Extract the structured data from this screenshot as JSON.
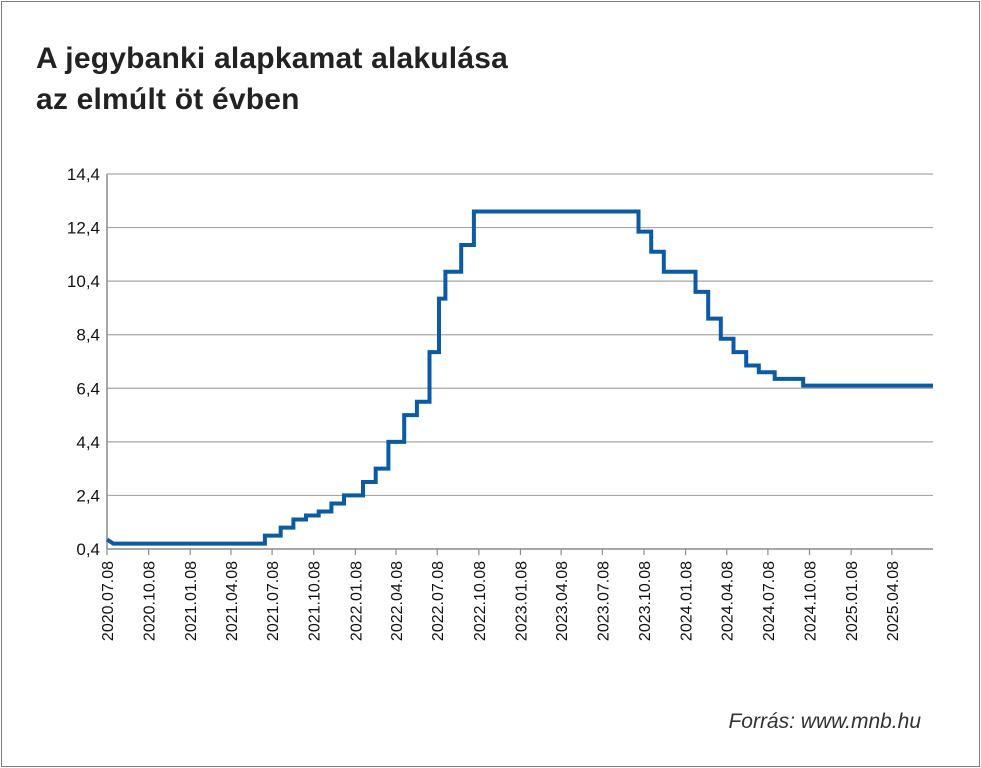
{
  "title_lines": [
    "A jegybanki alapkamat alakulása",
    "az elmúlt öt évben"
  ],
  "source": "Forrás: www.mnb.hu",
  "chart_data": {
    "type": "line",
    "title": "A jegybanki alapkamat alakulása az elmúlt öt évben",
    "xlabel": "",
    "ylabel": "",
    "ylim": [
      0.4,
      14.4
    ],
    "yticks": [
      "0,4",
      "2,4",
      "4,4",
      "6,4",
      "8,4",
      "10,4",
      "12,4",
      "14,4"
    ],
    "xticks": [
      "2020.07.08",
      "2020.10.08",
      "2021.01.08",
      "2021.04.08",
      "2021.07.08",
      "2021.10.08",
      "2022.01.08",
      "2022.04.08",
      "2022.07.08",
      "2022.10.08",
      "2023.01.08",
      "2023.04.08",
      "2023.07.08",
      "2023.10.08",
      "2024.01.08",
      "2024.04.08",
      "2024.07.08",
      "2024.10.08",
      "2025.01.08",
      "2025.04.08"
    ],
    "grid": true,
    "line_color": "#0b5aa6",
    "series": [
      {
        "points": [
          [
            "2020.07.08",
            0.75
          ],
          [
            "2020.07.22",
            0.6
          ],
          [
            "2021.06.22",
            0.6
          ],
          [
            "2021.06.22",
            0.9
          ],
          [
            "2021.07.27",
            0.9
          ],
          [
            "2021.07.27",
            1.2
          ],
          [
            "2021.08.24",
            1.2
          ],
          [
            "2021.08.24",
            1.5
          ],
          [
            "2021.09.21",
            1.5
          ],
          [
            "2021.09.21",
            1.65
          ],
          [
            "2021.10.19",
            1.65
          ],
          [
            "2021.10.19",
            1.8
          ],
          [
            "2021.11.16",
            1.8
          ],
          [
            "2021.11.16",
            2.1
          ],
          [
            "2021.12.14",
            2.1
          ],
          [
            "2021.12.14",
            2.4
          ],
          [
            "2022.01.25",
            2.4
          ],
          [
            "2022.01.25",
            2.9
          ],
          [
            "2022.02.22",
            2.9
          ],
          [
            "2022.02.22",
            3.4
          ],
          [
            "2022.03.22",
            3.4
          ],
          [
            "2022.03.22",
            4.4
          ],
          [
            "2022.04.26",
            4.4
          ],
          [
            "2022.04.26",
            5.4
          ],
          [
            "2022.05.24",
            5.4
          ],
          [
            "2022.05.24",
            5.9
          ],
          [
            "2022.06.21",
            5.9
          ],
          [
            "2022.06.21",
            7.75
          ],
          [
            "2022.07.12",
            7.75
          ],
          [
            "2022.07.12",
            9.75
          ],
          [
            "2022.07.26",
            9.75
          ],
          [
            "2022.07.26",
            10.75
          ],
          [
            "2022.08.30",
            10.75
          ],
          [
            "2022.08.30",
            11.75
          ],
          [
            "2022.09.27",
            11.75
          ],
          [
            "2022.09.27",
            13.0
          ],
          [
            "2023.09.26",
            13.0
          ],
          [
            "2023.09.26",
            12.25
          ],
          [
            "2023.10.24",
            12.25
          ],
          [
            "2023.10.24",
            11.5
          ],
          [
            "2023.11.21",
            11.5
          ],
          [
            "2023.11.21",
            10.75
          ],
          [
            "2024.01.30",
            10.75
          ],
          [
            "2024.01.30",
            10.0
          ],
          [
            "2024.02.27",
            10.0
          ],
          [
            "2024.02.27",
            9.0
          ],
          [
            "2024.03.26",
            9.0
          ],
          [
            "2024.03.26",
            8.25
          ],
          [
            "2024.04.23",
            8.25
          ],
          [
            "2024.04.23",
            7.75
          ],
          [
            "2024.05.21",
            7.75
          ],
          [
            "2024.05.21",
            7.25
          ],
          [
            "2024.06.18",
            7.25
          ],
          [
            "2024.06.18",
            7.0
          ],
          [
            "2024.07.23",
            7.0
          ],
          [
            "2024.07.23",
            6.75
          ],
          [
            "2024.09.24",
            6.75
          ],
          [
            "2024.09.24",
            6.5
          ],
          [
            "2025.07.08",
            6.5
          ]
        ]
      }
    ]
  }
}
